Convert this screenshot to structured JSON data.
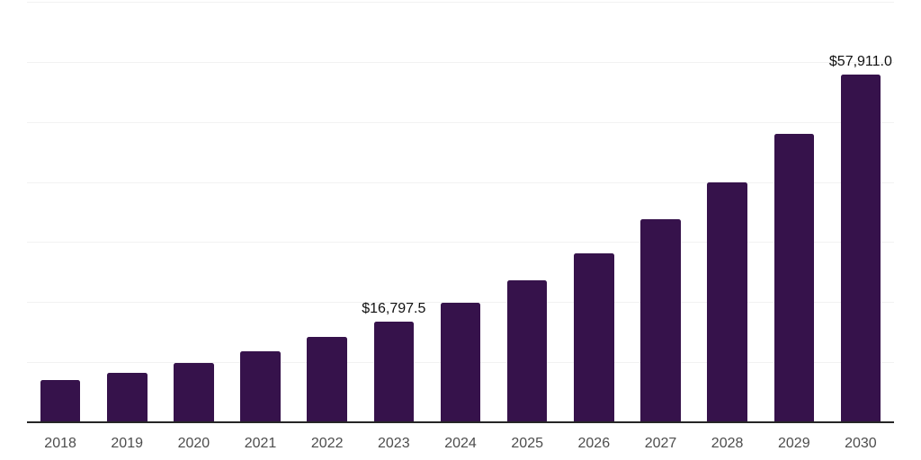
{
  "chart_data": {
    "type": "bar",
    "title": "",
    "xlabel": "",
    "ylabel": "",
    "categories": [
      "2018",
      "2019",
      "2020",
      "2021",
      "2022",
      "2023",
      "2024",
      "2025",
      "2026",
      "2027",
      "2028",
      "2029",
      "2030"
    ],
    "values": [
      7000,
      8250,
      9900,
      11800,
      14150,
      16797.5,
      19900,
      23600,
      28200,
      33850,
      39950,
      48050,
      57911
    ],
    "value_labels": [
      null,
      null,
      null,
      null,
      null,
      "$16,797.5",
      null,
      null,
      null,
      null,
      null,
      null,
      "$57,911.0"
    ],
    "ylim": [
      0,
      70000
    ],
    "gridline_step": 10000,
    "grid": "horizontal",
    "y_axis_tick_labels": "hidden",
    "legend": "none",
    "bar_color": "#36124b",
    "gridline_color": "#f2f2f2",
    "axis_line_color": "#262626",
    "tick_label_color": "#4d4d4d",
    "data_label_color": "#111111",
    "background_color": "#ffffff"
  }
}
